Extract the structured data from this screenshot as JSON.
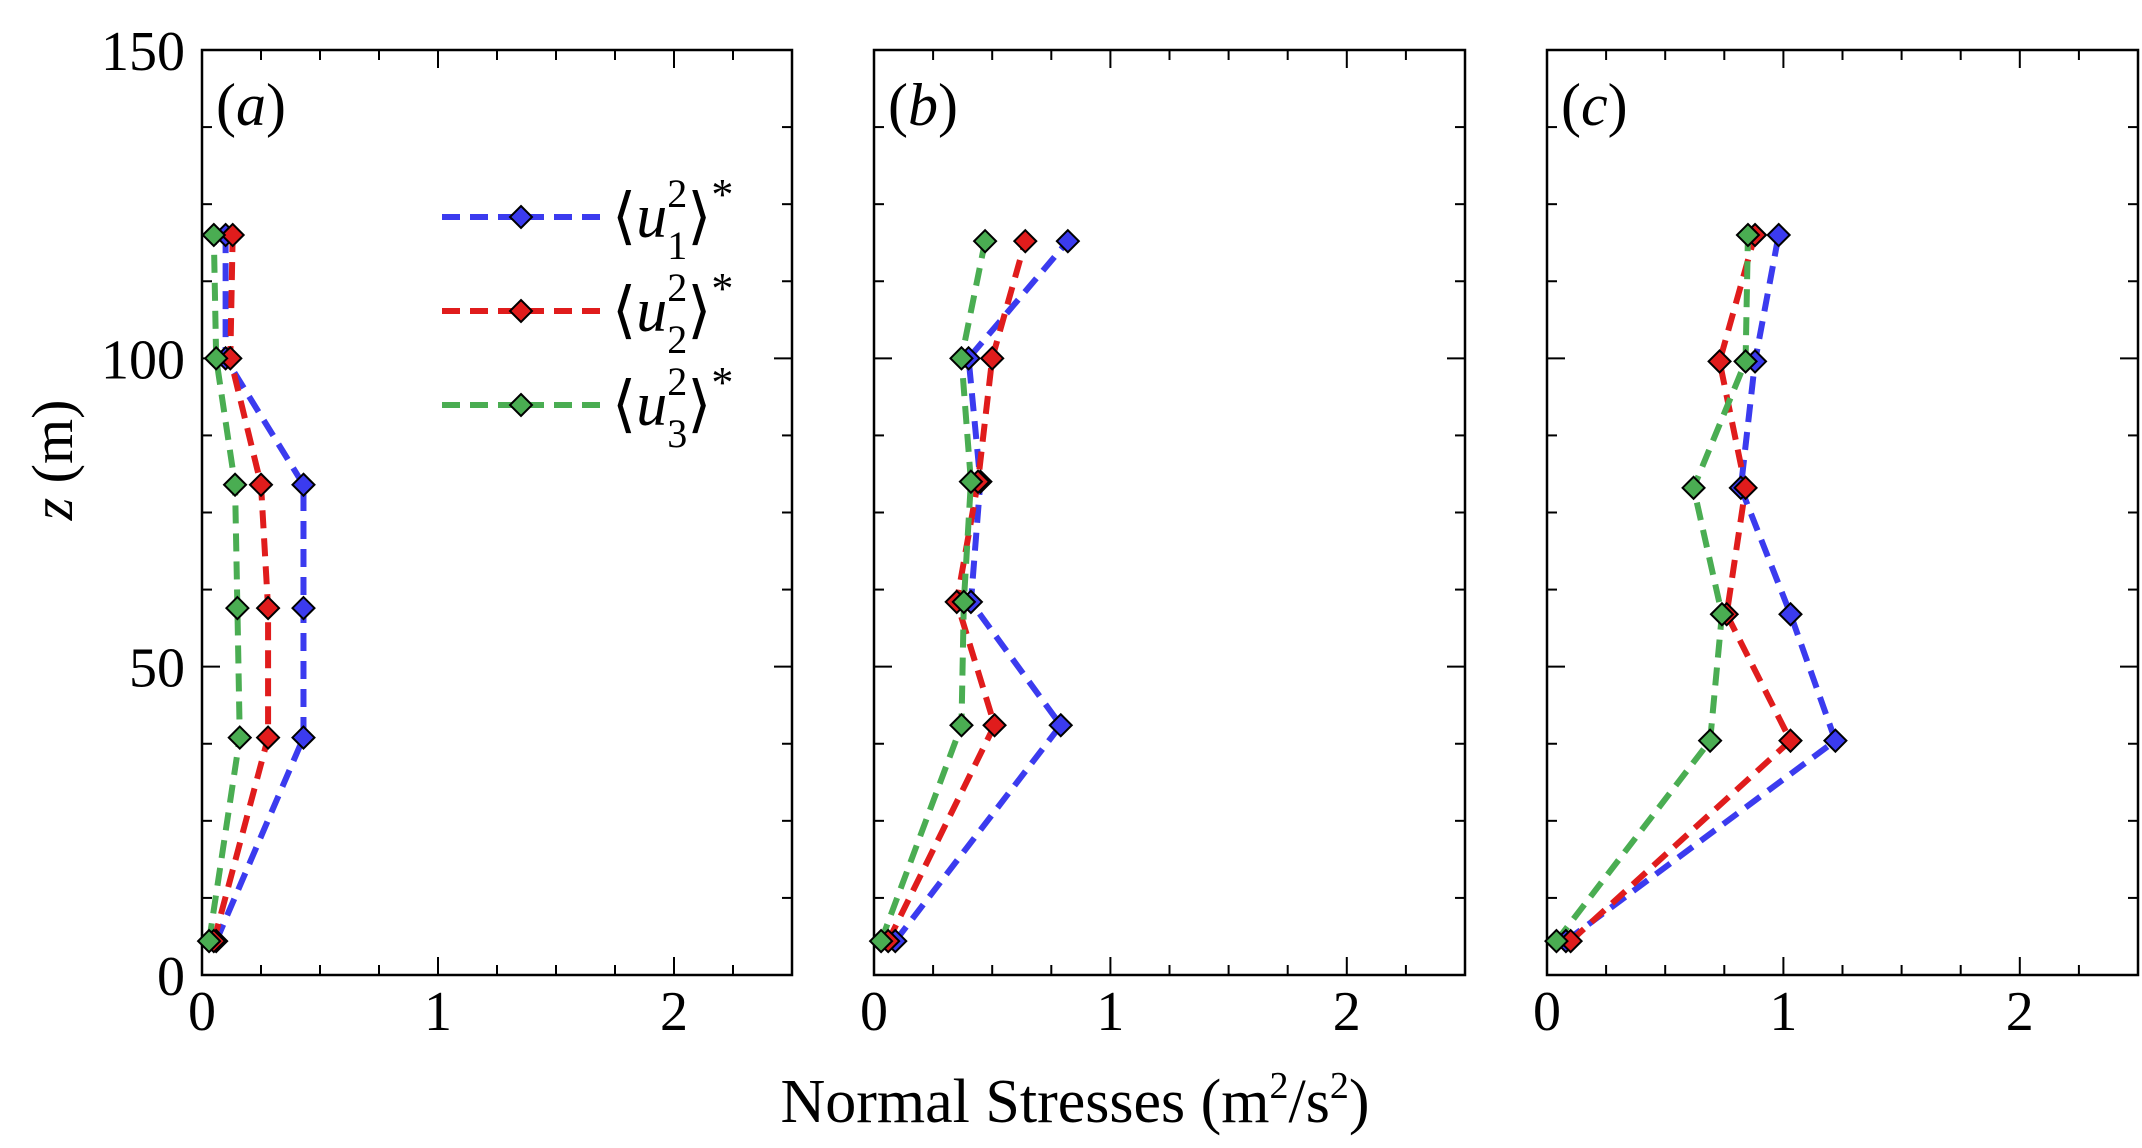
{
  "chart_data": {
    "type": "line",
    "xlabel": "Normal Stresses (m",
    "xlabel_sup1": "2",
    "xlabel_mid": "/s",
    "xlabel_sup2": "2",
    "xlabel_end": ")",
    "ylabel_italic": "z",
    "ylabel_rest": " (m)",
    "xlim": [
      0,
      2.5
    ],
    "ylim": [
      0,
      150
    ],
    "xticks": [
      0,
      1,
      2
    ],
    "xtick_labels": [
      "0",
      "1",
      "2"
    ],
    "yticks": [
      0,
      50,
      100,
      150
    ],
    "ytick_labels": [
      "0",
      "50",
      "100",
      "150"
    ],
    "legend": {
      "location": "top-right of panel (a)",
      "entries": [
        {
          "name": "u1",
          "subscript": "1",
          "sup": "2",
          "star": "*",
          "color": "#3b3bef"
        },
        {
          "name": "u2",
          "subscript": "2",
          "sup": "2",
          "star": "*",
          "color": "#e01c1c"
        },
        {
          "name": "u3",
          "subscript": "3",
          "sup": "2",
          "star": "*",
          "color": "#4aad52"
        }
      ]
    },
    "panels": [
      {
        "label": "(a)",
        "series": [
          {
            "name": "u1",
            "color": "#3b3bef",
            "points": [
              [
                0.06,
                5.5
              ],
              [
                0.43,
                38.5
              ],
              [
                0.43,
                59.5
              ],
              [
                0.43,
                79.5
              ],
              [
                0.1,
                100
              ],
              [
                0.1,
                120
              ]
            ]
          },
          {
            "name": "u2",
            "color": "#e01c1c",
            "points": [
              [
                0.05,
                5.5
              ],
              [
                0.28,
                38.5
              ],
              [
                0.28,
                59.5
              ],
              [
                0.25,
                79.5
              ],
              [
                0.12,
                100
              ],
              [
                0.13,
                120
              ]
            ]
          },
          {
            "name": "u3",
            "color": "#4aad52",
            "points": [
              [
                0.03,
                5.5
              ],
              [
                0.16,
                38.5
              ],
              [
                0.15,
                59.5
              ],
              [
                0.14,
                79.5
              ],
              [
                0.06,
                100
              ],
              [
                0.05,
                120
              ]
            ]
          }
        ]
      },
      {
        "label": "(b)",
        "series": [
          {
            "name": "u1",
            "color": "#3b3bef",
            "points": [
              [
                0.09,
                5.5
              ],
              [
                0.79,
                40.5
              ],
              [
                0.41,
                60.5
              ],
              [
                0.45,
                80
              ],
              [
                0.4,
                100
              ],
              [
                0.82,
                119
              ]
            ]
          },
          {
            "name": "u2",
            "color": "#e01c1c",
            "points": [
              [
                0.06,
                5.5
              ],
              [
                0.51,
                40.5
              ],
              [
                0.35,
                60.5
              ],
              [
                0.44,
                80
              ],
              [
                0.5,
                100
              ],
              [
                0.64,
                119
              ]
            ]
          },
          {
            "name": "u3",
            "color": "#4aad52",
            "points": [
              [
                0.03,
                5.5
              ],
              [
                0.37,
                40.5
              ],
              [
                0.38,
                60.5
              ],
              [
                0.41,
                80
              ],
              [
                0.37,
                100
              ],
              [
                0.47,
                119
              ]
            ]
          }
        ]
      },
      {
        "label": "(c)",
        "series": [
          {
            "name": "u1",
            "color": "#3b3bef",
            "points": [
              [
                0.08,
                5.5
              ],
              [
                1.22,
                38
              ],
              [
                1.03,
                58.5
              ],
              [
                0.82,
                79
              ],
              [
                0.88,
                99.5
              ],
              [
                0.98,
                120
              ]
            ]
          },
          {
            "name": "u2",
            "color": "#e01c1c",
            "points": [
              [
                0.1,
                5.5
              ],
              [
                1.03,
                38
              ],
              [
                0.76,
                58.5
              ],
              [
                0.84,
                79
              ],
              [
                0.73,
                99.5
              ],
              [
                0.88,
                120
              ]
            ]
          },
          {
            "name": "u3",
            "color": "#4aad52",
            "points": [
              [
                0.04,
                5.5
              ],
              [
                0.69,
                38
              ],
              [
                0.74,
                58.5
              ],
              [
                0.62,
                79
              ],
              [
                0.84,
                99.5
              ],
              [
                0.85,
                120
              ]
            ]
          }
        ]
      }
    ]
  }
}
